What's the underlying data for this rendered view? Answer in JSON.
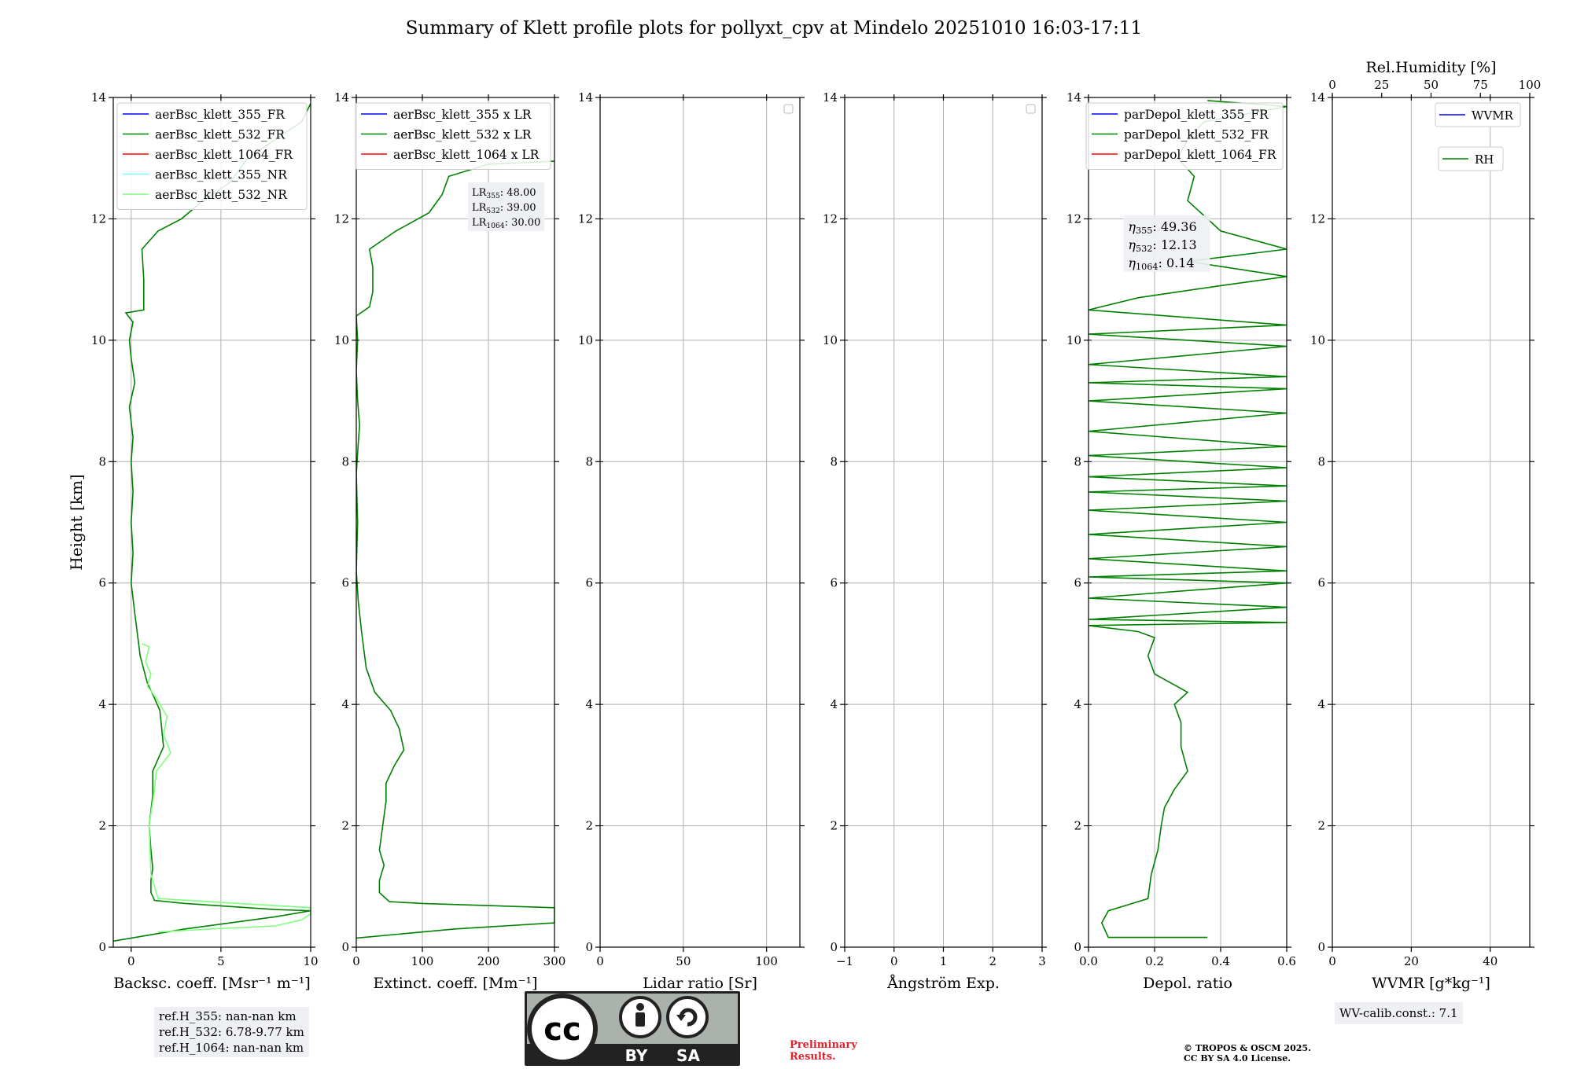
{
  "title": "Summary of Klett profile plots for pollyxt_cpv at Mindelo 20251010 16:03-17:11",
  "colors": {
    "blue": "#0000ff",
    "green": "#008000",
    "red": "#ff0000",
    "cyan": "#7ff8ff",
    "lightgreen": "#7fff7f"
  },
  "chart_data": [
    {
      "id": "backscatter",
      "type": "line",
      "xlabel": "Backsc. coeff. [Msr⁻¹ m⁻¹]",
      "ylabel": "Height [km]",
      "xlim": [
        -1,
        10
      ],
      "ylim": [
        0,
        14
      ],
      "xticks": [
        0,
        5,
        10
      ],
      "xtick_labels": [
        "0",
        "5",
        "10"
      ],
      "yticks": [
        0,
        2,
        4,
        6,
        8,
        10,
        12,
        14
      ],
      "ytick_labels": [
        "0",
        "2",
        "4",
        "6",
        "8",
        "10",
        "12",
        "14"
      ],
      "grid": true,
      "legend_position": "top-right",
      "series": [
        {
          "name": "aerBsc_klett_355_FR",
          "color": "#0000ff",
          "points": []
        },
        {
          "name": "aerBsc_klett_532_FR",
          "color": "#008000",
          "points": [
            [
              -1,
              0.1
            ],
            [
              3,
              0.3
            ],
            [
              8,
              0.5
            ],
            [
              10,
              0.6
            ],
            [
              8,
              0.62
            ],
            [
              3,
              0.72
            ],
            [
              1.3,
              0.77
            ],
            [
              1.1,
              0.9
            ],
            [
              1.1,
              1.1
            ],
            [
              1.2,
              1.3
            ],
            [
              1.1,
              1.6
            ],
            [
              1.0,
              2.0
            ],
            [
              1.2,
              2.5
            ],
            [
              1.2,
              2.9
            ],
            [
              1.5,
              3.1
            ],
            [
              1.8,
              3.3
            ],
            [
              1.7,
              3.6
            ],
            [
              1.6,
              3.9
            ],
            [
              1.3,
              4.1
            ],
            [
              0.9,
              4.35
            ],
            [
              0.5,
              4.8
            ],
            [
              0.2,
              5.5
            ],
            [
              0.0,
              6.0
            ],
            [
              0.1,
              6.5
            ],
            [
              0.0,
              7.0
            ],
            [
              0.1,
              7.5
            ],
            [
              0.0,
              8.0
            ],
            [
              0.1,
              8.4
            ],
            [
              -0.1,
              8.9
            ],
            [
              0.2,
              9.3
            ],
            [
              0.0,
              9.7
            ],
            [
              -0.1,
              10.0
            ],
            [
              0.1,
              10.3
            ],
            [
              -0.3,
              10.45
            ],
            [
              0.7,
              10.5
            ],
            [
              0.7,
              11.0
            ],
            [
              0.6,
              11.5
            ],
            [
              1.5,
              11.8
            ],
            [
              2.8,
              12.0
            ],
            [
              4.0,
              12.3
            ],
            [
              5.5,
              12.6
            ],
            [
              6.5,
              13.0
            ],
            [
              8.0,
              13.3
            ],
            [
              9.5,
              13.6
            ],
            [
              10,
              13.9
            ]
          ]
        },
        {
          "name": "aerBsc_klett_1064_FR",
          "color": "#ff0000",
          "points": []
        },
        {
          "name": "aerBsc_klett_355_NR",
          "color": "#7ff8ff",
          "points": []
        },
        {
          "name": "aerBsc_klett_532_NR",
          "color": "#7fff7f",
          "points": [
            [
              1.5,
              0.25
            ],
            [
              4.5,
              0.3
            ],
            [
              8,
              0.35
            ],
            [
              9.5,
              0.45
            ],
            [
              10,
              0.55
            ],
            [
              10,
              0.65
            ],
            [
              6,
              0.72
            ],
            [
              1.5,
              0.8
            ],
            [
              1.1,
              1.2
            ],
            [
              1.0,
              2.0
            ],
            [
              1.3,
              2.6
            ],
            [
              1.4,
              2.9
            ],
            [
              2.2,
              3.2
            ],
            [
              1.8,
              3.5
            ],
            [
              2.0,
              3.8
            ],
            [
              1.4,
              4.1
            ],
            [
              0.9,
              4.3
            ],
            [
              1.1,
              4.5
            ],
            [
              0.8,
              4.7
            ],
            [
              1.0,
              4.95
            ],
            [
              0.6,
              5.0
            ]
          ]
        }
      ],
      "annotations": [
        {
          "text": "ref.H_355: nan-nan km"
        },
        {
          "text": "ref.H_532: 6.78-9.77 km"
        },
        {
          "text": "ref.H_1064: nan-nan km"
        }
      ]
    },
    {
      "id": "extinction",
      "type": "line",
      "xlabel": "Extinct. coeff. [Mm⁻¹]",
      "xlim": [
        0,
        300
      ],
      "ylim": [
        0,
        14
      ],
      "xticks": [
        0,
        100,
        200,
        300
      ],
      "xtick_labels": [
        "0",
        "100",
        "200",
        "300"
      ],
      "yticks": [
        0,
        2,
        4,
        6,
        8,
        10,
        12,
        14
      ],
      "ytick_labels": [
        "0",
        "2",
        "4",
        "6",
        "8",
        "10",
        "12",
        "14"
      ],
      "grid": true,
      "legend_position": "top-right",
      "series": [
        {
          "name": "aerBsc_klett_355 x LR",
          "color": "#0000ff",
          "points": []
        },
        {
          "name": "aerBsc_klett_532 x LR",
          "color": "#008000",
          "points": [
            [
              0,
              0.15
            ],
            [
              150,
              0.3
            ],
            [
              300,
              0.4
            ],
            [
              300,
              0.65
            ],
            [
              100,
              0.72
            ],
            [
              50,
              0.75
            ],
            [
              35,
              0.9
            ],
            [
              35,
              1.1
            ],
            [
              42,
              1.35
            ],
            [
              35,
              1.6
            ],
            [
              40,
              2.0
            ],
            [
              45,
              2.4
            ],
            [
              45,
              2.7
            ],
            [
              58,
              3.0
            ],
            [
              72,
              3.25
            ],
            [
              65,
              3.6
            ],
            [
              52,
              3.9
            ],
            [
              28,
              4.2
            ],
            [
              15,
              4.6
            ],
            [
              8,
              5.2
            ],
            [
              3,
              5.7
            ],
            [
              0,
              6.2
            ],
            [
              2,
              7.0
            ],
            [
              0,
              7.8
            ],
            [
              3,
              8.3
            ],
            [
              5,
              8.6
            ],
            [
              2,
              9.0
            ],
            [
              0,
              9.5
            ],
            [
              2,
              10.0
            ],
            [
              0,
              10.4
            ],
            [
              20,
              10.55
            ],
            [
              25,
              10.8
            ],
            [
              25,
              11.2
            ],
            [
              20,
              11.5
            ],
            [
              60,
              11.8
            ],
            [
              110,
              12.1
            ],
            [
              130,
              12.4
            ],
            [
              140,
              12.7
            ],
            [
              200,
              12.9
            ],
            [
              300,
              12.95
            ]
          ]
        },
        {
          "name": "aerBsc_klett_1064 x LR",
          "color": "#ff0000",
          "points": []
        }
      ],
      "annotations": [
        {
          "text": "LR355: 48.00"
        },
        {
          "text": "LR532: 39.00"
        },
        {
          "text": "LR1064: 30.00"
        }
      ]
    },
    {
      "id": "lidar_ratio",
      "type": "line",
      "xlabel": "Lidar ratio [Sr]",
      "xlim": [
        0,
        120
      ],
      "ylim": [
        0,
        14
      ],
      "xticks": [
        0,
        50,
        100
      ],
      "xtick_labels": [
        "0",
        "50",
        "100"
      ],
      "yticks": [
        0,
        2,
        4,
        6,
        8,
        10,
        12,
        14
      ],
      "ytick_labels": [
        "0",
        "2",
        "4",
        "6",
        "8",
        "10",
        "12",
        "14"
      ],
      "grid": true,
      "legend_position": "top-right",
      "series": []
    },
    {
      "id": "angstrom",
      "type": "line",
      "xlabel": "Ångström Exp.",
      "xlim": [
        -1,
        3
      ],
      "ylim": [
        0,
        14
      ],
      "xticks": [
        -1,
        0,
        1,
        2,
        3
      ],
      "xtick_labels": [
        "−1",
        "0",
        "1",
        "2",
        "3"
      ],
      "yticks": [
        0,
        2,
        4,
        6,
        8,
        10,
        12,
        14
      ],
      "ytick_labels": [
        "0",
        "2",
        "4",
        "6",
        "8",
        "10",
        "12",
        "14"
      ],
      "grid": true,
      "legend_position": "top-right",
      "series": []
    },
    {
      "id": "depol",
      "type": "line",
      "xlabel": "Depol. ratio",
      "xlim": [
        0,
        0.6
      ],
      "ylim": [
        0,
        14
      ],
      "xticks": [
        0,
        0.2,
        0.4,
        0.6
      ],
      "xtick_labels": [
        "0.0",
        "0.2",
        "0.4",
        "0.6"
      ],
      "yticks": [
        0,
        2,
        4,
        6,
        8,
        10,
        12,
        14
      ],
      "ytick_labels": [
        "0",
        "2",
        "4",
        "6",
        "8",
        "10",
        "12",
        "14"
      ],
      "grid": true,
      "legend_position": "top-right",
      "series": [
        {
          "name": "parDepol_klett_355_FR",
          "color": "#0000ff",
          "points": []
        },
        {
          "name": "parDepol_klett_532_FR",
          "color": "#008000",
          "points": [
            [
              0.36,
              0.16
            ],
            [
              0.06,
              0.16
            ],
            [
              0.04,
              0.4
            ],
            [
              0.06,
              0.6
            ],
            [
              0.12,
              0.7
            ],
            [
              0.18,
              0.8
            ],
            [
              0.19,
              1.2
            ],
            [
              0.21,
              1.6
            ],
            [
              0.22,
              2.0
            ],
            [
              0.23,
              2.3
            ],
            [
              0.26,
              2.6
            ],
            [
              0.3,
              2.9
            ],
            [
              0.28,
              3.3
            ],
            [
              0.28,
              3.7
            ],
            [
              0.26,
              4.0
            ],
            [
              0.3,
              4.2
            ],
            [
              0.2,
              4.5
            ],
            [
              0.18,
              4.8
            ],
            [
              0.2,
              5.1
            ],
            [
              0.15,
              5.2
            ],
            [
              0.0,
              5.3
            ],
            [
              0.6,
              5.35
            ],
            [
              0.0,
              5.4
            ],
            [
              0.6,
              5.6
            ],
            [
              0.0,
              5.75
            ],
            [
              0.6,
              6.0
            ],
            [
              0.0,
              6.1
            ],
            [
              0.6,
              6.2
            ],
            [
              0.0,
              6.4
            ],
            [
              0.6,
              6.6
            ],
            [
              0.0,
              6.8
            ],
            [
              0.6,
              7.0
            ],
            [
              0.0,
              7.2
            ],
            [
              0.6,
              7.35
            ],
            [
              0.0,
              7.5
            ],
            [
              0.6,
              7.6
            ],
            [
              0.0,
              7.75
            ],
            [
              0.6,
              7.9
            ],
            [
              0.0,
              8.1
            ],
            [
              0.6,
              8.25
            ],
            [
              0.0,
              8.5
            ],
            [
              0.6,
              8.8
            ],
            [
              0.0,
              9.0
            ],
            [
              0.6,
              9.2
            ],
            [
              0.0,
              9.3
            ],
            [
              0.6,
              9.4
            ],
            [
              0.0,
              9.6
            ],
            [
              0.6,
              9.9
            ],
            [
              0.0,
              10.1
            ],
            [
              0.6,
              10.25
            ],
            [
              0.0,
              10.5
            ],
            [
              0.15,
              10.7
            ],
            [
              0.4,
              10.9
            ],
            [
              0.6,
              11.05
            ],
            [
              0.3,
              11.3
            ],
            [
              0.6,
              11.5
            ],
            [
              0.4,
              11.8
            ],
            [
              0.36,
              12.0
            ],
            [
              0.3,
              12.3
            ],
            [
              0.32,
              12.7
            ],
            [
              0.27,
              13.0
            ],
            [
              0.3,
              13.3
            ],
            [
              0.35,
              13.6
            ],
            [
              0.6,
              13.85
            ],
            [
              0.36,
              13.95
            ]
          ]
        },
        {
          "name": "parDepol_klett_1064_FR",
          "color": "#ff0000",
          "points": []
        }
      ],
      "annotations": [
        {
          "text": "η355: 49.36"
        },
        {
          "text": "η532: 12.13"
        },
        {
          "text": "η1064: 0.14"
        }
      ]
    },
    {
      "id": "wvmr",
      "type": "line",
      "xlabel": "WVMR [g*kg⁻¹]",
      "top_xlabel": "Rel.Humidity [%]",
      "xlim": [
        0,
        50
      ],
      "ylim": [
        0,
        14
      ],
      "xticks": [
        0,
        20,
        40
      ],
      "xtick_labels": [
        "0",
        "20",
        "40"
      ],
      "top_xlim": [
        0,
        100
      ],
      "top_xticks": [
        0,
        25,
        50,
        75,
        100
      ],
      "top_xtick_labels": [
        "0",
        "25",
        "50",
        "75",
        "100"
      ],
      "yticks": [
        0,
        2,
        4,
        6,
        8,
        10,
        12,
        14
      ],
      "ytick_labels": [
        "0",
        "2",
        "4",
        "6",
        "8",
        "10",
        "12",
        "14"
      ],
      "grid": true,
      "legend_position": "top-right",
      "series": [
        {
          "name": "WVMR",
          "color": "#0000ff",
          "points": []
        },
        {
          "name": "RH",
          "color": "#008000",
          "points": []
        }
      ],
      "annotations": [
        {
          "text": "WV-calib.const.: 7.1"
        }
      ]
    }
  ],
  "footer": {
    "preliminary": [
      "Preliminary",
      "Results."
    ],
    "copyright": [
      "© TROPOS & OSCM 2025.",
      "CC BY SA 4.0 License."
    ],
    "cc_logo": {
      "cc": "cc",
      "by": "BY",
      "sa": "SA"
    }
  }
}
